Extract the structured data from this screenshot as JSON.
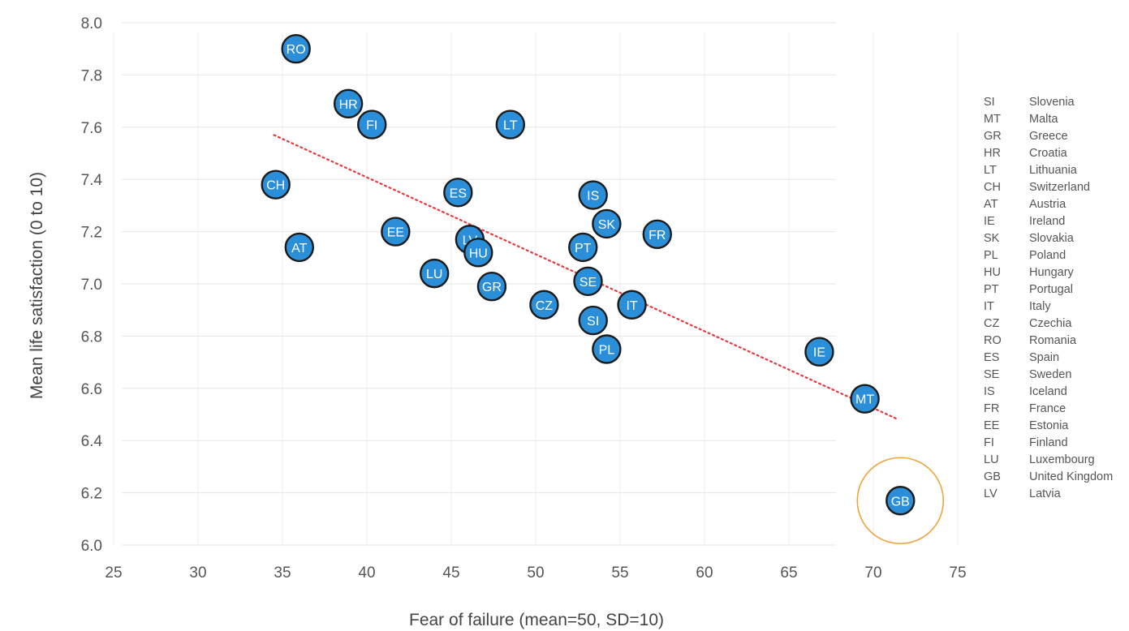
{
  "chart_data": {
    "type": "scatter",
    "xlabel": "Fear of failure (mean=50, SD=10)",
    "ylabel": "Mean life satisfaction (0 to 10)",
    "xlim": [
      25,
      75
    ],
    "ylim": [
      6.0,
      8.0
    ],
    "xticks": [
      "25",
      "30",
      "35",
      "40",
      "45",
      "50",
      "55",
      "60",
      "65",
      "70",
      "75"
    ],
    "yticks": [
      "6.0",
      "6.2",
      "6.4",
      "6.6",
      "6.8",
      "7.0",
      "7.2",
      "7.4",
      "7.6",
      "7.8",
      "8.0"
    ],
    "grid": true,
    "trendline": {
      "x": [
        34.5,
        71.5
      ],
      "y": [
        7.57,
        6.48
      ],
      "style": "dotted",
      "color": "#e8383d"
    },
    "point_color": "#2a8fd8",
    "highlight": {
      "label": "GB",
      "color": "#f0a33c"
    },
    "points": [
      {
        "label": "RO",
        "x": 35.8,
        "y": 7.9
      },
      {
        "label": "HR",
        "x": 38.9,
        "y": 7.69
      },
      {
        "label": "FI",
        "x": 40.3,
        "y": 7.61
      },
      {
        "label": "LT",
        "x": 48.5,
        "y": 7.61
      },
      {
        "label": "CH",
        "x": 34.6,
        "y": 7.38
      },
      {
        "label": "ES",
        "x": 45.4,
        "y": 7.35
      },
      {
        "label": "IS",
        "x": 53.4,
        "y": 7.34
      },
      {
        "label": "SK",
        "x": 54.2,
        "y": 7.23
      },
      {
        "label": "FR",
        "x": 57.2,
        "y": 7.19
      },
      {
        "label": "EE",
        "x": 41.7,
        "y": 7.2
      },
      {
        "label": "LV",
        "x": 46.1,
        "y": 7.17
      },
      {
        "label": "AT",
        "x": 36.0,
        "y": 7.14
      },
      {
        "label": "HU",
        "x": 46.6,
        "y": 7.12
      },
      {
        "label": "PT",
        "x": 52.8,
        "y": 7.14
      },
      {
        "label": "LU",
        "x": 44.0,
        "y": 7.04
      },
      {
        "label": "SE",
        "x": 53.1,
        "y": 7.01
      },
      {
        "label": "GR",
        "x": 47.4,
        "y": 6.99
      },
      {
        "label": "CZ",
        "x": 50.5,
        "y": 6.92
      },
      {
        "label": "IT",
        "x": 55.7,
        "y": 6.92
      },
      {
        "label": "SI",
        "x": 53.4,
        "y": 6.86
      },
      {
        "label": "PL",
        "x": 54.2,
        "y": 6.75
      },
      {
        "label": "IE",
        "x": 66.8,
        "y": 6.74
      },
      {
        "label": "MT",
        "x": 69.5,
        "y": 6.56
      },
      {
        "label": "GB",
        "x": 71.6,
        "y": 6.17
      }
    ],
    "legend": [
      {
        "code": "SI",
        "name": "Slovenia"
      },
      {
        "code": "MT",
        "name": "Malta"
      },
      {
        "code": "GR",
        "name": "Greece"
      },
      {
        "code": "HR",
        "name": "Croatia"
      },
      {
        "code": "LT",
        "name": "Lithuania"
      },
      {
        "code": "CH",
        "name": "Switzerland"
      },
      {
        "code": "AT",
        "name": "Austria"
      },
      {
        "code": "IE",
        "name": "Ireland"
      },
      {
        "code": "SK",
        "name": "Slovakia"
      },
      {
        "code": "PL",
        "name": "Poland"
      },
      {
        "code": "HU",
        "name": "Hungary"
      },
      {
        "code": "PT",
        "name": "Portugal"
      },
      {
        "code": "IT",
        "name": "Italy"
      },
      {
        "code": "CZ",
        "name": "Czechia"
      },
      {
        "code": "RO",
        "name": "Romania"
      },
      {
        "code": "ES",
        "name": "Spain"
      },
      {
        "code": "SE",
        "name": "Sweden"
      },
      {
        "code": "IS",
        "name": "Iceland"
      },
      {
        "code": "FR",
        "name": "France"
      },
      {
        "code": "EE",
        "name": "Estonia"
      },
      {
        "code": "FI",
        "name": "Finland"
      },
      {
        "code": "LU",
        "name": "Luxembourg"
      },
      {
        "code": "GB",
        "name": "United Kingdom"
      },
      {
        "code": "LV",
        "name": "Latvia"
      }
    ]
  }
}
